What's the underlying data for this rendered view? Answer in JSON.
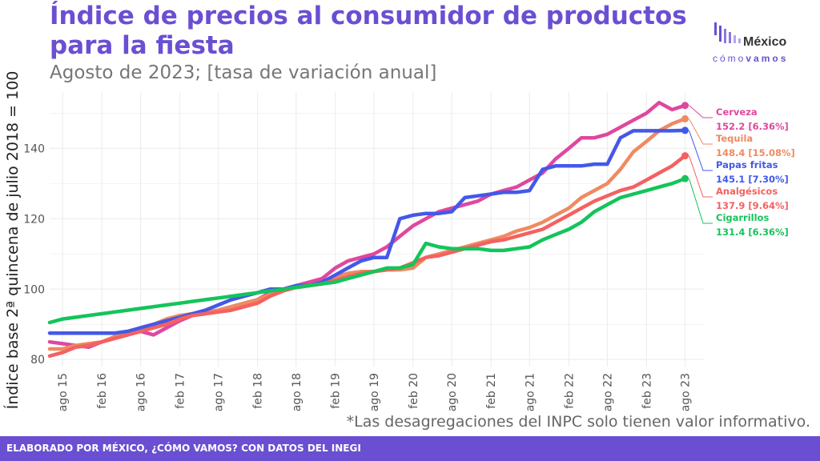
{
  "header": {
    "title": "Índice de precios al consumidor de productos para la fiesta",
    "subtitle": "Agosto de 2023; [tasa de variación anual]"
  },
  "logo": {
    "brand_line1": "México",
    "brand_line2_a": "cómo",
    "brand_line2_b": "vamos"
  },
  "footnote": "*Las desagregaciones del INPC solo tienen valor informativo.",
  "footer": "ELABORADO POR MÉXICO, ¿CÓMO VAMOS? CON DATOS DEL INEGI",
  "colors": {
    "brand": "#6a4fd2",
    "grid": "#ebebeb"
  },
  "chart_data": {
    "type": "line",
    "ylabel": "Índice base 2ª quincena de julio 2018 = 100",
    "xlabel": "",
    "ylim": [
      78,
      156
    ],
    "yticks": [
      80,
      100,
      120,
      140
    ],
    "x": [
      "2015-06",
      "2015-08",
      "2015-10",
      "2015-12",
      "2016-02",
      "2016-04",
      "2016-06",
      "2016-08",
      "2016-10",
      "2016-12",
      "2017-02",
      "2017-04",
      "2017-06",
      "2017-08",
      "2017-10",
      "2017-12",
      "2018-02",
      "2018-04",
      "2018-06",
      "2018-08",
      "2018-10",
      "2018-12",
      "2019-02",
      "2019-04",
      "2019-06",
      "2019-08",
      "2019-10",
      "2019-12",
      "2020-02",
      "2020-04",
      "2020-06",
      "2020-08",
      "2020-10",
      "2020-12",
      "2021-02",
      "2021-04",
      "2021-06",
      "2021-08",
      "2021-10",
      "2021-12",
      "2022-02",
      "2022-04",
      "2022-06",
      "2022-08",
      "2022-10",
      "2022-12",
      "2023-02",
      "2023-04",
      "2023-06",
      "2023-08"
    ],
    "xticks": [
      "ago 15",
      "feb 16",
      "ago 16",
      "feb 17",
      "ago 17",
      "feb 18",
      "ago 18",
      "feb 19",
      "ago 19",
      "feb 20",
      "ago 20",
      "feb 21",
      "ago 21",
      "feb 22",
      "ago 22",
      "feb 23",
      "ago 23"
    ],
    "grid": true,
    "legend": "end-of-line labels",
    "series": [
      {
        "name": "Cerveza",
        "label": "152.2 [6.36%]",
        "color": "#e0479e",
        "values": [
          85,
          84.5,
          84,
          83.5,
          85,
          86,
          87,
          88,
          87,
          89,
          91,
          92.5,
          93,
          94,
          95,
          96,
          97,
          99,
          100,
          101,
          102,
          103,
          106,
          108,
          109,
          110,
          112,
          115,
          118,
          120,
          122,
          123,
          124,
          125,
          127,
          128,
          129,
          131,
          133,
          137,
          140,
          143,
          143,
          144,
          146,
          148,
          150,
          153,
          151,
          152.2
        ]
      },
      {
        "name": "Tequila",
        "label": "148.4 [15.08%]",
        "color": "#ef8a62",
        "values": [
          83,
          83,
          84,
          84.5,
          85,
          86.5,
          87.5,
          89,
          90,
          91.5,
          92.5,
          93,
          93.5,
          94,
          95,
          96,
          97,
          98.5,
          100,
          100.5,
          101,
          101.5,
          103.5,
          104.5,
          105,
          105,
          105.5,
          105.5,
          106,
          109,
          110,
          111,
          112,
          113,
          114,
          115,
          116.5,
          117.5,
          119,
          121,
          123,
          126,
          128,
          130,
          134,
          139,
          142,
          145,
          147,
          148.4
        ]
      },
      {
        "name": "Papas fritas",
        "label": "145.1 [7.30%]",
        "color": "#4458e8",
        "values": [
          87.5,
          87.5,
          87.5,
          87.5,
          87.5,
          87.5,
          88,
          89,
          90,
          91,
          92,
          93,
          94,
          95.5,
          97,
          98,
          99,
          100,
          100,
          101,
          101,
          102,
          104,
          106,
          108,
          109,
          109,
          120,
          121,
          121.5,
          121.5,
          122,
          126,
          126.5,
          127,
          127.5,
          127.5,
          128,
          134,
          135,
          135,
          135,
          135.5,
          135.5,
          143,
          145,
          145,
          145,
          145,
          145.1
        ]
      },
      {
        "name": "Analgésicos",
        "label": "137.9 [9.64%]",
        "color": "#f46161",
        "values": [
          81,
          82,
          83.5,
          84,
          85,
          86,
          87,
          88,
          89,
          90,
          91.5,
          92.5,
          93,
          93.5,
          94,
          95,
          96,
          98,
          99.5,
          100.5,
          101,
          101.5,
          102.5,
          103.5,
          104.5,
          105,
          105.5,
          106,
          107.5,
          109,
          109.5,
          110.5,
          111.5,
          112.5,
          113.5,
          114,
          115,
          116,
          117,
          119,
          121,
          123,
          125,
          126.5,
          128,
          129,
          131,
          133,
          135,
          137.9
        ]
      },
      {
        "name": "Cigarrillos",
        "label": "131.4 [6.36%]",
        "color": "#14c45a",
        "values": [
          90.5,
          91.5,
          92,
          92.5,
          93,
          93.5,
          94,
          94.5,
          95,
          95.5,
          96,
          96.5,
          97,
          97.5,
          98,
          98.5,
          99,
          99.5,
          100,
          100.5,
          101,
          101.5,
          102,
          103,
          104,
          105,
          106,
          106,
          107,
          113,
          112,
          111.5,
          111.5,
          111.5,
          111,
          111,
          111.5,
          112,
          114,
          115.5,
          117,
          119,
          122,
          124,
          126,
          127,
          128,
          129,
          130,
          131.4
        ]
      }
    ]
  }
}
